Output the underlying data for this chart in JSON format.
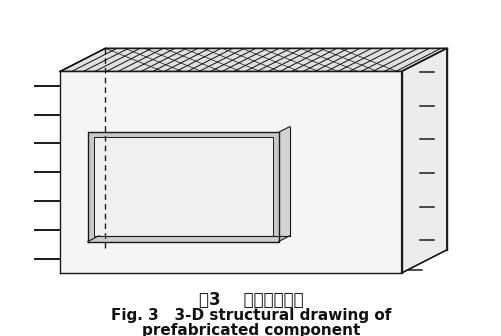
{
  "title_zh": "图3    构件三维结构",
  "title_en1": "Fig. 3   3-D structural drawing of",
  "title_en2": "prefabricated component",
  "bg_color": "#ffffff",
  "line_color": "#1a1a1a",
  "face_front": "#f5f5f5",
  "face_top": "#e0e0e0",
  "face_right": "#ececec",
  "face_win_frame": "#c8c8c8",
  "face_win_inner": "#f0f0f0",
  "hatch_color": "#111111",
  "title_zh_fontsize": 12,
  "title_en_fontsize": 11,
  "fig_width": 5.02,
  "fig_height": 3.36
}
